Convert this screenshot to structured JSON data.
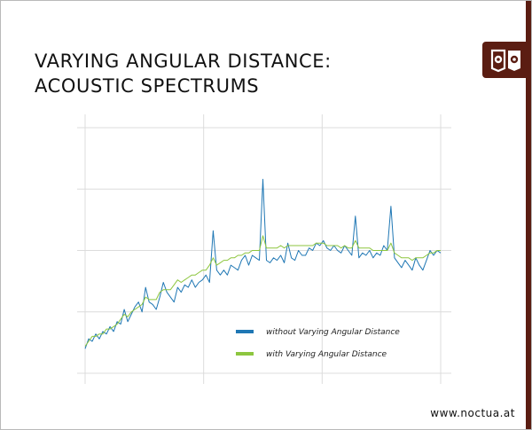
{
  "slide": {
    "title_line1": "VARYING ANGULAR DISTANCE:",
    "title_line2": "ACOUSTIC SPECTRUMS",
    "footer_url": "www.noctua.at",
    "logo_icon": "noctua-owl-logo-icon",
    "brand_color": "#5b1d12"
  },
  "chart_data": {
    "type": "line",
    "title": "VARYING ANGULAR DISTANCE: ACOUSTIC SPECTRUMS",
    "xlabel": "",
    "ylabel": "",
    "x_ticks": 4,
    "y_gridlines": 5,
    "grid": true,
    "legend_position": "lower-right inside plot",
    "x_range": [
      0,
      100
    ],
    "ylim": [
      0,
      100
    ],
    "series": [
      {
        "name": "without Varying Angular Distance",
        "color": "#1f77b4",
        "points": [
          [
            0,
            10
          ],
          [
            1,
            14
          ],
          [
            2,
            13
          ],
          [
            3,
            16
          ],
          [
            4,
            14
          ],
          [
            5,
            17
          ],
          [
            6,
            16
          ],
          [
            7,
            19
          ],
          [
            8,
            17
          ],
          [
            9,
            21
          ],
          [
            10,
            20
          ],
          [
            11,
            26
          ],
          [
            12,
            21
          ],
          [
            13,
            24
          ],
          [
            14,
            27
          ],
          [
            15,
            29
          ],
          [
            16,
            25
          ],
          [
            17,
            35
          ],
          [
            18,
            29
          ],
          [
            19,
            28
          ],
          [
            20,
            26
          ],
          [
            21,
            31
          ],
          [
            22,
            37
          ],
          [
            23,
            33
          ],
          [
            24,
            31
          ],
          [
            25,
            29
          ],
          [
            26,
            35
          ],
          [
            27,
            33
          ],
          [
            28,
            36
          ],
          [
            29,
            35
          ],
          [
            30,
            38
          ],
          [
            31,
            35
          ],
          [
            32,
            37
          ],
          [
            33,
            38
          ],
          [
            34,
            40
          ],
          [
            35,
            37
          ],
          [
            36,
            58
          ],
          [
            37,
            42
          ],
          [
            38,
            40
          ],
          [
            39,
            42
          ],
          [
            40,
            40
          ],
          [
            41,
            44
          ],
          [
            42,
            43
          ],
          [
            43,
            42
          ],
          [
            44,
            46
          ],
          [
            45,
            48
          ],
          [
            46,
            44
          ],
          [
            47,
            48
          ],
          [
            48,
            47
          ],
          [
            49,
            46
          ],
          [
            50,
            79
          ],
          [
            51,
            46
          ],
          [
            52,
            45
          ],
          [
            53,
            47
          ],
          [
            54,
            46
          ],
          [
            55,
            48
          ],
          [
            56,
            45
          ],
          [
            57,
            53
          ],
          [
            58,
            47
          ],
          [
            59,
            46
          ],
          [
            60,
            50
          ],
          [
            61,
            48
          ],
          [
            62,
            48
          ],
          [
            63,
            51
          ],
          [
            64,
            50
          ],
          [
            65,
            53
          ],
          [
            66,
            52
          ],
          [
            67,
            54
          ],
          [
            68,
            51
          ],
          [
            69,
            50
          ],
          [
            70,
            52
          ],
          [
            71,
            50
          ],
          [
            72,
            49
          ],
          [
            73,
            52
          ],
          [
            74,
            50
          ],
          [
            75,
            48
          ],
          [
            76,
            64
          ],
          [
            77,
            47
          ],
          [
            78,
            49
          ],
          [
            79,
            48
          ],
          [
            80,
            50
          ],
          [
            81,
            47
          ],
          [
            82,
            49
          ],
          [
            83,
            48
          ],
          [
            84,
            52
          ],
          [
            85,
            50
          ],
          [
            86,
            68
          ],
          [
            87,
            47
          ],
          [
            88,
            45
          ],
          [
            89,
            43
          ],
          [
            90,
            46
          ],
          [
            91,
            44
          ],
          [
            92,
            42
          ],
          [
            93,
            47
          ],
          [
            94,
            44
          ],
          [
            95,
            42
          ],
          [
            96,
            46
          ],
          [
            97,
            50
          ],
          [
            98,
            48
          ],
          [
            99,
            50
          ],
          [
            100,
            49
          ]
        ]
      },
      {
        "name": "with Varying Angular Distance",
        "color": "#8dc63f",
        "points": [
          [
            0,
            11
          ],
          [
            1,
            13
          ],
          [
            2,
            15
          ],
          [
            3,
            15
          ],
          [
            4,
            16
          ],
          [
            5,
            16
          ],
          [
            6,
            18
          ],
          [
            7,
            18
          ],
          [
            8,
            19
          ],
          [
            9,
            20
          ],
          [
            10,
            22
          ],
          [
            11,
            24
          ],
          [
            12,
            23
          ],
          [
            13,
            25
          ],
          [
            14,
            26
          ],
          [
            15,
            27
          ],
          [
            16,
            28
          ],
          [
            17,
            31
          ],
          [
            18,
            30
          ],
          [
            19,
            30
          ],
          [
            20,
            30
          ],
          [
            21,
            33
          ],
          [
            22,
            34
          ],
          [
            23,
            34
          ],
          [
            24,
            34
          ],
          [
            25,
            36
          ],
          [
            26,
            38
          ],
          [
            27,
            37
          ],
          [
            28,
            38
          ],
          [
            29,
            39
          ],
          [
            30,
            40
          ],
          [
            31,
            40
          ],
          [
            32,
            41
          ],
          [
            33,
            42
          ],
          [
            34,
            42
          ],
          [
            35,
            44
          ],
          [
            36,
            47
          ],
          [
            37,
            44
          ],
          [
            38,
            45
          ],
          [
            39,
            46
          ],
          [
            40,
            46
          ],
          [
            41,
            47
          ],
          [
            42,
            47
          ],
          [
            43,
            48
          ],
          [
            44,
            48
          ],
          [
            45,
            49
          ],
          [
            46,
            49
          ],
          [
            47,
            50
          ],
          [
            48,
            50
          ],
          [
            49,
            50
          ],
          [
            50,
            56
          ],
          [
            51,
            51
          ],
          [
            52,
            51
          ],
          [
            53,
            51
          ],
          [
            54,
            51
          ],
          [
            55,
            52
          ],
          [
            56,
            51
          ],
          [
            57,
            52
          ],
          [
            58,
            52
          ],
          [
            59,
            52
          ],
          [
            60,
            52
          ],
          [
            61,
            52
          ],
          [
            62,
            52
          ],
          [
            63,
            52
          ],
          [
            64,
            52
          ],
          [
            65,
            53
          ],
          [
            66,
            53
          ],
          [
            67,
            53
          ],
          [
            68,
            52
          ],
          [
            69,
            52
          ],
          [
            70,
            52
          ],
          [
            71,
            52
          ],
          [
            72,
            51
          ],
          [
            73,
            52
          ],
          [
            74,
            51
          ],
          [
            75,
            51
          ],
          [
            76,
            54
          ],
          [
            77,
            51
          ],
          [
            78,
            51
          ],
          [
            79,
            51
          ],
          [
            80,
            51
          ],
          [
            81,
            50
          ],
          [
            82,
            50
          ],
          [
            83,
            50
          ],
          [
            84,
            50
          ],
          [
            85,
            50
          ],
          [
            86,
            53
          ],
          [
            87,
            49
          ],
          [
            88,
            48
          ],
          [
            89,
            47
          ],
          [
            90,
            47
          ],
          [
            91,
            47
          ],
          [
            92,
            46
          ],
          [
            93,
            47
          ],
          [
            94,
            47
          ],
          [
            95,
            47
          ],
          [
            96,
            48
          ],
          [
            97,
            49
          ],
          [
            98,
            49
          ],
          [
            99,
            50
          ],
          [
            100,
            50
          ]
        ]
      }
    ]
  }
}
